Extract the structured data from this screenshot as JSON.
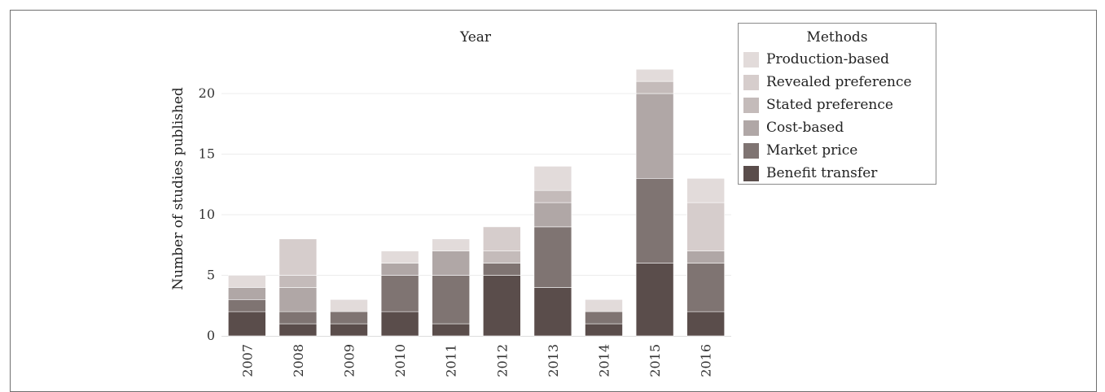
{
  "chart_data": {
    "type": "bar",
    "stacked": true,
    "title": "Year",
    "xlabel": "",
    "ylabel": "Number of studies published",
    "ylim": [
      0,
      23
    ],
    "yticks": [
      0,
      5,
      10,
      15,
      20
    ],
    "categories": [
      "2007",
      "2008",
      "2009",
      "2010",
      "2011",
      "2012",
      "2013",
      "2014",
      "2015",
      "2016"
    ],
    "legend_title": "Methods",
    "legend_position": "right",
    "series": [
      {
        "name": "Benefit transfer",
        "color": "#5a4d4b",
        "values": [
          2,
          1,
          1,
          2,
          1,
          5,
          4,
          1,
          6,
          2
        ]
      },
      {
        "name": "Market price",
        "color": "#7f7472",
        "values": [
          1,
          1,
          1,
          3,
          4,
          1,
          5,
          1,
          7,
          4
        ]
      },
      {
        "name": "Cost-based",
        "color": "#b0a7a6",
        "values": [
          1,
          2,
          0,
          1,
          2,
          0,
          2,
          0,
          7,
          1
        ]
      },
      {
        "name": "Stated preference",
        "color": "#c4bbba",
        "values": [
          0,
          1,
          0,
          0,
          0,
          1,
          1,
          0,
          1,
          0
        ]
      },
      {
        "name": "Revealed preference",
        "color": "#d6cdcc",
        "values": [
          0,
          3,
          0,
          0,
          0,
          2,
          0,
          0,
          0,
          4
        ]
      },
      {
        "name": "Production-based",
        "color": "#e2dbda",
        "values": [
          1,
          0,
          1,
          1,
          1,
          0,
          2,
          1,
          1,
          2
        ]
      }
    ]
  }
}
